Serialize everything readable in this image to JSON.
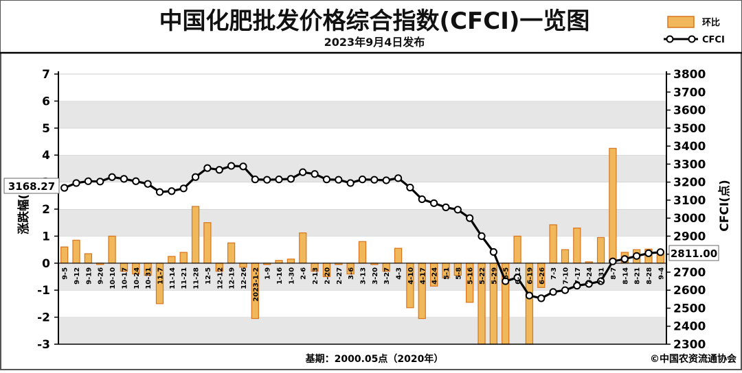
{
  "header": {
    "title": "中国化肥批发价格综合指数(CFCI)一览图",
    "subtitle": "2023年9月4日发布"
  },
  "legend": {
    "bar_label": "环比",
    "line_label": "CFCI"
  },
  "footer": {
    "base_note": "基期：2000.05点（2020年）",
    "copyright": "©中国农资流通协会"
  },
  "callouts": {
    "start_value": "3168.27",
    "end_value": "2811.00"
  },
  "colors": {
    "bar_fill": "#f0b85a",
    "bar_stroke": "#d9731a",
    "line": "#000000",
    "grid_band": "#e6e6e6"
  },
  "chart_data": {
    "type": "bar",
    "title": "中国化肥批发价格综合指数(CFCI)一览图",
    "subtitle": "2023年9月4日发布",
    "xlabel": "",
    "ylabel": "涨跌幅(%)",
    "y2label": "CFCI(点)",
    "ylim": [
      -3,
      7
    ],
    "y2lim": [
      2300,
      3800
    ],
    "yticks": [
      -3,
      -2,
      -1,
      0,
      1,
      2,
      3,
      4,
      5,
      6,
      7
    ],
    "y2ticks": [
      2300,
      2400,
      2500,
      2600,
      2700,
      2800,
      2900,
      3000,
      3100,
      3200,
      3300,
      3400,
      3500,
      3600,
      3700,
      3800
    ],
    "grid": "horizontal bands",
    "legend_position": "top-right",
    "categories": [
      "9-5",
      "9-12",
      "9-19",
      "9-26",
      "10-10",
      "10-17",
      "10-24",
      "10-31",
      "11-7",
      "11-14",
      "11-21",
      "11-28",
      "12-5",
      "12-12",
      "12-19",
      "12-26",
      "2023-1-2",
      "1-9",
      "1-16",
      "1-30",
      "2-6",
      "2-13",
      "2-20",
      "2-27",
      "3-6",
      "3-13",
      "3-20",
      "3-27",
      "4-3",
      "4-10",
      "4-17",
      "4-24",
      "5-1",
      "5-8",
      "5-16",
      "5-22",
      "5-29",
      "6-5",
      "6-12",
      "6-19",
      "6-26",
      "7-3",
      "7-10",
      "7-17",
      "7-24",
      "7-31",
      "8-7",
      "8-14",
      "8-21",
      "8-28",
      "9-4"
    ],
    "series": [
      {
        "name": "环比",
        "kind": "bar",
        "axis": "left",
        "values": [
          0.6,
          0.85,
          0.35,
          -0.05,
          1.0,
          -0.3,
          -0.4,
          -0.45,
          -1.5,
          0.25,
          0.4,
          2.1,
          1.5,
          -0.3,
          0.75,
          -0.15,
          -2.05,
          -0.05,
          0.1,
          0.15,
          1.12,
          -0.3,
          -0.5,
          -0.05,
          -0.4,
          0.8,
          -0.05,
          -0.3,
          0.55,
          -1.65,
          -2.05,
          -0.85,
          -0.55,
          -0.45,
          -1.45,
          -3.0,
          -3.0,
          -3.0,
          1.0,
          -3.0,
          -0.9,
          1.42,
          0.5,
          1.3,
          0.05,
          0.95,
          4.25,
          0.4,
          0.5,
          0.52,
          0.45
        ]
      },
      {
        "name": "CFCI",
        "kind": "line",
        "axis": "right",
        "values": [
          3168,
          3195,
          3205,
          3203,
          3228,
          3218,
          3205,
          3190,
          3145,
          3150,
          3165,
          3228,
          3278,
          3268,
          3290,
          3287,
          3215,
          3213,
          3215,
          3218,
          3255,
          3245,
          3215,
          3213,
          3195,
          3215,
          3213,
          3210,
          3222,
          3170,
          3105,
          3083,
          3060,
          3047,
          3000,
          2900,
          2812,
          2650,
          2670,
          2570,
          2555,
          2590,
          2600,
          2625,
          2635,
          2650,
          2760,
          2773,
          2790,
          2805,
          2811
        ]
      }
    ]
  }
}
